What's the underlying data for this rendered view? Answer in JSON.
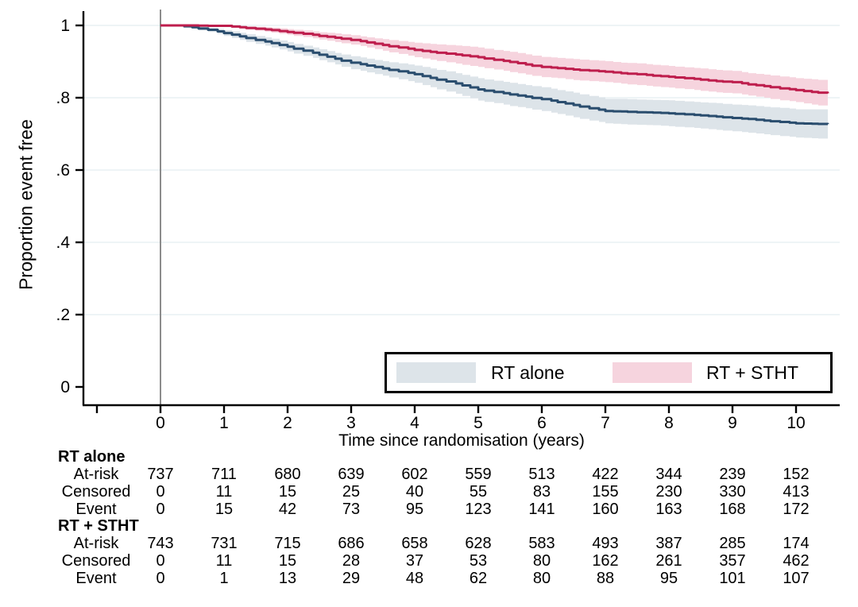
{
  "figure_type": "kaplan-meier-survival-plot",
  "colors": {
    "background": "#ffffff",
    "axis": "#000000",
    "grid": "#e9f0f3",
    "reference_line": "#8c8c8c",
    "rt_alone_line": "#2a4d6e",
    "rt_alone_band": "#dde4e9",
    "rt_stht_line": "#be1e4d",
    "rt_stht_band": "#f6d4de"
  },
  "yaxis": {
    "title": "Proportion event free",
    "ticks": [
      {
        "value": 0,
        "label": "0"
      },
      {
        "value": 0.2,
        "label": ".2"
      },
      {
        "value": 0.4,
        "label": ".4"
      },
      {
        "value": 0.6,
        "label": ".6"
      },
      {
        "value": 0.8,
        "label": ".8"
      },
      {
        "value": 1,
        "label": "1"
      }
    ]
  },
  "xaxis": {
    "title": "Time since randomisation (years)",
    "ticks": [
      {
        "value": 0,
        "label": "0"
      },
      {
        "value": 1,
        "label": "1"
      },
      {
        "value": 2,
        "label": "2"
      },
      {
        "value": 3,
        "label": "3"
      },
      {
        "value": 4,
        "label": "4"
      },
      {
        "value": 5,
        "label": "5"
      },
      {
        "value": 6,
        "label": "6"
      },
      {
        "value": 7,
        "label": "7"
      },
      {
        "value": 8,
        "label": "8"
      },
      {
        "value": 9,
        "label": "9"
      },
      {
        "value": 10,
        "label": "10"
      }
    ],
    "unlabeled_tick_values": [
      -1
    ]
  },
  "legend": {
    "entries": [
      {
        "label": "RT alone",
        "swatch_color": "#dde4e9"
      },
      {
        "label": "RT + STHT",
        "swatch_color": "#f6d4de"
      }
    ]
  },
  "chart_data": {
    "type": "line",
    "subtype": "kaplan-meier-step-with-confidence-bands",
    "title": "",
    "xlabel": "Time since randomisation (years)",
    "ylabel": "Proportion event free",
    "xlim": [
      -1.45,
      10.7
    ],
    "ylim": [
      0,
      1.03
    ],
    "grid": "horizontal",
    "legend_position": "inside-lower-right",
    "reference_line_x": 0,
    "x": [
      0,
      0.25,
      0.5,
      0.75,
      1,
      1.25,
      1.5,
      1.75,
      2,
      2.25,
      2.5,
      2.75,
      3,
      3.25,
      3.5,
      3.75,
      4,
      4.25,
      4.5,
      4.75,
      5,
      5.25,
      5.5,
      5.75,
      6,
      6.25,
      6.5,
      6.75,
      7,
      7.25,
      7.5,
      7.75,
      8,
      8.25,
      8.5,
      8.75,
      9,
      9.25,
      9.5,
      9.75,
      10,
      10.25,
      10.5
    ],
    "series": [
      {
        "name": "RT alone",
        "line_color": "#2a4d6e",
        "band_color": "#dde4e9",
        "values": [
          1.0,
          1.0,
          0.995,
          0.988,
          0.979,
          0.97,
          0.96,
          0.951,
          0.941,
          0.93,
          0.919,
          0.908,
          0.897,
          0.889,
          0.881,
          0.873,
          0.865,
          0.855,
          0.845,
          0.834,
          0.823,
          0.816,
          0.809,
          0.803,
          0.796,
          0.788,
          0.78,
          0.771,
          0.763,
          0.762,
          0.76,
          0.759,
          0.757,
          0.754,
          0.751,
          0.748,
          0.744,
          0.741,
          0.737,
          0.733,
          0.729,
          0.728,
          0.727
        ],
        "band_halfwidth": [
          0,
          0.002,
          0.004,
          0.006,
          0.008,
          0.01,
          0.011,
          0.012,
          0.013,
          0.014,
          0.015,
          0.016,
          0.018,
          0.019,
          0.02,
          0.022,
          0.024,
          0.026,
          0.028,
          0.029,
          0.031,
          0.031,
          0.032,
          0.032,
          0.033,
          0.033,
          0.034,
          0.034,
          0.034,
          0.035,
          0.035,
          0.035,
          0.036,
          0.036,
          0.036,
          0.037,
          0.037,
          0.038,
          0.038,
          0.039,
          0.039,
          0.04,
          0.041
        ]
      },
      {
        "name": "RT + STHT",
        "line_color": "#be1e4d",
        "band_color": "#f6d4de",
        "values": [
          1.0,
          1.0,
          1.0,
          0.999,
          0.999,
          0.995,
          0.991,
          0.987,
          0.982,
          0.977,
          0.971,
          0.966,
          0.96,
          0.953,
          0.946,
          0.939,
          0.932,
          0.927,
          0.922,
          0.917,
          0.912,
          0.905,
          0.899,
          0.892,
          0.885,
          0.882,
          0.878,
          0.875,
          0.872,
          0.868,
          0.865,
          0.861,
          0.858,
          0.854,
          0.85,
          0.846,
          0.843,
          0.837,
          0.832,
          0.826,
          0.821,
          0.816,
          0.812
        ],
        "band_halfwidth": [
          0,
          0,
          0.001,
          0.002,
          0.003,
          0.004,
          0.005,
          0.007,
          0.008,
          0.009,
          0.01,
          0.012,
          0.013,
          0.014,
          0.016,
          0.018,
          0.02,
          0.022,
          0.024,
          0.026,
          0.027,
          0.027,
          0.028,
          0.028,
          0.028,
          0.028,
          0.029,
          0.029,
          0.029,
          0.029,
          0.03,
          0.03,
          0.03,
          0.03,
          0.031,
          0.031,
          0.031,
          0.031,
          0.032,
          0.033,
          0.033,
          0.035,
          0.036
        ]
      }
    ]
  },
  "risk_table": {
    "time_points": [
      0,
      1,
      2,
      3,
      4,
      5,
      6,
      7,
      8,
      9,
      10
    ],
    "groups": [
      {
        "name": "RT alone",
        "rows": [
          {
            "label": "At-risk",
            "values": [
              737,
              711,
              680,
              639,
              602,
              559,
              513,
              422,
              344,
              239,
              152
            ]
          },
          {
            "label": "Censored",
            "values": [
              0,
              11,
              15,
              25,
              40,
              55,
              83,
              155,
              230,
              330,
              413
            ]
          },
          {
            "label": "Event",
            "values": [
              0,
              15,
              42,
              73,
              95,
              123,
              141,
              160,
              163,
              168,
              172
            ]
          }
        ]
      },
      {
        "name": "RT + STHT",
        "rows": [
          {
            "label": "At-risk",
            "values": [
              743,
              731,
              715,
              686,
              658,
              628,
              583,
              493,
              387,
              285,
              174
            ]
          },
          {
            "label": "Censored",
            "values": [
              0,
              11,
              15,
              28,
              37,
              53,
              80,
              162,
              261,
              357,
              462
            ]
          },
          {
            "label": "Event",
            "values": [
              0,
              1,
              13,
              29,
              48,
              62,
              80,
              88,
              95,
              101,
              107
            ]
          }
        ]
      }
    ]
  }
}
